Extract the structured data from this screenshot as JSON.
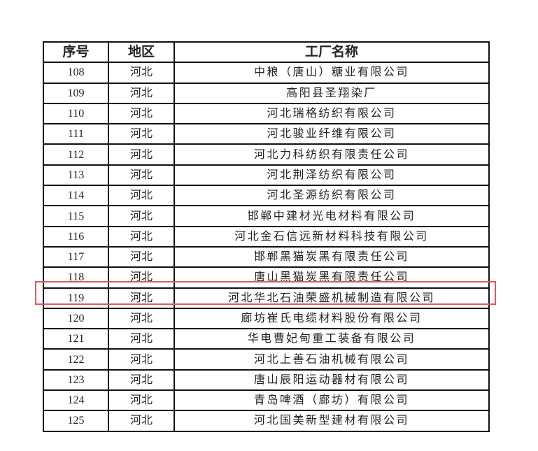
{
  "headers": {
    "index": "序号",
    "region": "地区",
    "factory": "工厂名称"
  },
  "highlight_color": "#e0585c",
  "highlighted_row": "118",
  "rows": [
    {
      "no": "108",
      "region": "河北",
      "name": "中粮（唐山）糖业有限公司"
    },
    {
      "no": "109",
      "region": "河北",
      "name": "高阳县圣翔染厂"
    },
    {
      "no": "110",
      "region": "河北",
      "name": "河北瑞格纺织有限公司"
    },
    {
      "no": "111",
      "region": "河北",
      "name": "河北骏业纤维有限公司"
    },
    {
      "no": "112",
      "region": "河北",
      "name": "河北力科纺织有限责任公司"
    },
    {
      "no": "113",
      "region": "河北",
      "name": "河北荆泽纺织有限公司"
    },
    {
      "no": "114",
      "region": "河北",
      "name": "河北圣源纺织有限公司"
    },
    {
      "no": "115",
      "region": "河北",
      "name": "邯郸中建材光电材料有限公司"
    },
    {
      "no": "116",
      "region": "河北",
      "name": "河北金石信远新材料科技有限公司"
    },
    {
      "no": "117",
      "region": "河北",
      "name": "邯郸黑猫炭黑有限责任公司"
    },
    {
      "no": "118",
      "region": "河北",
      "name": "唐山黑猫炭黑有限责任公司"
    },
    {
      "no": "119",
      "region": "河北",
      "name": "河北华北石油荣盛机械制造有限公司"
    },
    {
      "no": "120",
      "region": "河北",
      "name": "廊坊崔氏电缆材料股份有限公司"
    },
    {
      "no": "121",
      "region": "河北",
      "name": "华电曹妃甸重工装备有限公司"
    },
    {
      "no": "122",
      "region": "河北",
      "name": "河北上善石油机械有限公司"
    },
    {
      "no": "123",
      "region": "河北",
      "name": "唐山辰阳运动器材有限公司"
    },
    {
      "no": "124",
      "region": "河北",
      "name": "青岛啤酒（廊坊）有限公司"
    },
    {
      "no": "125",
      "region": "河北",
      "name": "河北国美新型建材有限公司"
    }
  ]
}
